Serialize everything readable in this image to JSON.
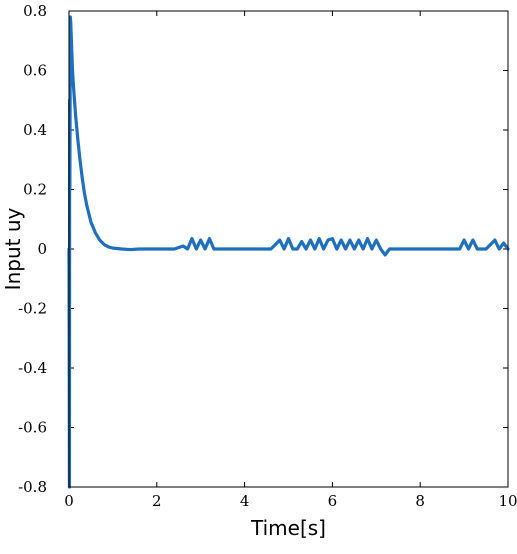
{
  "chart_data": {
    "type": "line",
    "title": "",
    "xlabel": "Time[s]",
    "ylabel": "Input uy",
    "xlim": [
      0,
      10
    ],
    "ylim": [
      -0.8,
      0.8
    ],
    "xticks": [
      0,
      2,
      4,
      6,
      8,
      10
    ],
    "yticks": [
      -0.8,
      -0.6,
      -0.4,
      -0.2,
      0,
      0.2,
      0.4,
      0.6,
      0.8
    ],
    "ytick_labels": [
      "-0.8",
      "-0.6",
      "-0.4",
      "-0.2",
      "0",
      "0.2",
      "0.4",
      "0.6",
      "0.8"
    ],
    "xtick_labels": [
      "0",
      "2",
      "4",
      "6",
      "8",
      "10"
    ],
    "grid": false,
    "line_color": "#1f6fbf",
    "series": [
      {
        "x": [
          0,
          0.01,
          0.015,
          0.02,
          0.03,
          0.04,
          0.05,
          0.06,
          0.08,
          0.1,
          0.15,
          0.2,
          0.25,
          0.3,
          0.35,
          0.4,
          0.5,
          0.6,
          0.7,
          0.8,
          0.9,
          1.0,
          1.2,
          1.4,
          1.6,
          1.8,
          2.0,
          2.4,
          2.6,
          2.7,
          2.8,
          2.9,
          3.0,
          3.1,
          3.2,
          3.3,
          3.4,
          3.6,
          4.0,
          4.4,
          4.6,
          4.8,
          4.9,
          5.0,
          5.1,
          5.2,
          5.3,
          5.4,
          5.5,
          5.6,
          5.7,
          5.8,
          5.9,
          6.0,
          6.1,
          6.2,
          6.3,
          6.4,
          6.5,
          6.6,
          6.7,
          6.8,
          6.9,
          7.0,
          7.1,
          7.2,
          7.3,
          7.5,
          8.0,
          8.5,
          8.9,
          9.0,
          9.1,
          9.2,
          9.3,
          9.5,
          9.7,
          9.8,
          9.9,
          10.0
        ],
        "y": [
          0,
          -0.8,
          0.5,
          0.2,
          0.78,
          0.76,
          0.72,
          0.68,
          0.6,
          0.55,
          0.45,
          0.37,
          0.3,
          0.24,
          0.19,
          0.15,
          0.09,
          0.055,
          0.03,
          0.015,
          0.007,
          0.003,
          0.0,
          -0.002,
          0.0,
          0.0,
          0.0,
          0.0,
          0.01,
          0.0,
          0.035,
          0.0,
          0.03,
          0.0,
          0.035,
          0.0,
          0.0,
          0.0,
          0.0,
          0.0,
          0.0,
          0.03,
          0.0,
          0.035,
          0.0,
          0.0,
          0.025,
          0.0,
          0.03,
          0.0,
          0.035,
          0.0,
          0.03,
          0.035,
          0.0,
          0.03,
          0.0,
          0.03,
          0.0,
          0.03,
          0.0,
          0.035,
          0.0,
          0.03,
          0.0,
          -0.02,
          0.0,
          0.0,
          0.0,
          0.0,
          0.0,
          0.03,
          0.0,
          0.03,
          0.0,
          0.0,
          0.03,
          0.0,
          0.02,
          0.0
        ]
      }
    ]
  }
}
